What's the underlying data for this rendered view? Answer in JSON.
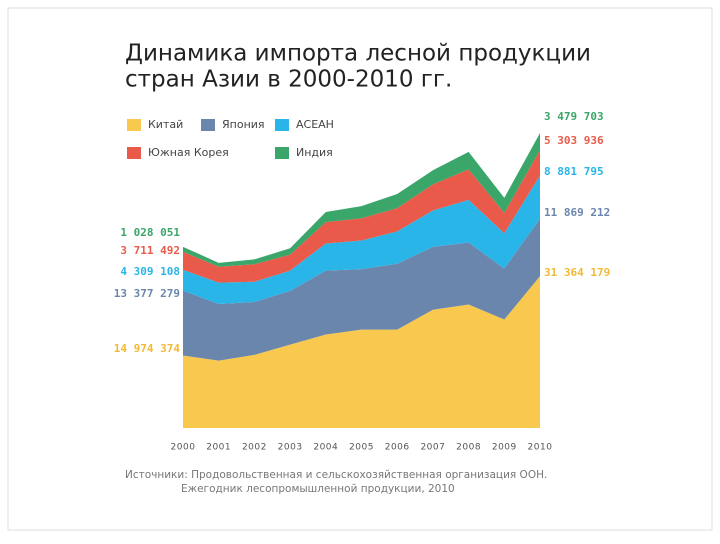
{
  "chart_data": {
    "type": "stacked-area",
    "title": [
      "Динамика импорта лесной продукции",
      "стран Азии в 2000-2010 гг."
    ],
    "categories": [
      "2000",
      "2001",
      "2002",
      "2003",
      "2004",
      "2005",
      "2006",
      "2007",
      "2008",
      "2009",
      "2010"
    ],
    "series": [
      {
        "name": "Китай",
        "color": "#f9c84e",
        "values": [
          14974374,
          13900000,
          15100000,
          17200000,
          19300000,
          20300000,
          20300000,
          24400000,
          25500000,
          22400000,
          31364179
        ],
        "value_labels": [
          "14 974 374",
          null,
          null,
          null,
          null,
          null,
          null,
          null,
          null,
          null,
          "31 364 179"
        ]
      },
      {
        "name": "Япония",
        "color": "#6b86ad",
        "values": [
          13377279,
          11700000,
          10900000,
          11100000,
          13200000,
          12500000,
          13600000,
          13000000,
          12800000,
          10500000,
          11869212
        ],
        "value_labels": [
          "13 377 279",
          null,
          null,
          null,
          null,
          null,
          null,
          null,
          null,
          null,
          "11 869 212"
        ]
      },
      {
        "name": "АСЕАН",
        "color": "#29b5e8",
        "values": [
          4309108,
          4400000,
          4200000,
          4200000,
          5600000,
          5900000,
          6700000,
          7500000,
          8800000,
          7300000,
          8881795
        ],
        "value_labels": [
          "4 309 108",
          null,
          null,
          null,
          null,
          null,
          null,
          null,
          null,
          null,
          "8 881 795"
        ]
      },
      {
        "name": "Южная Корея",
        "color": "#ea5a4a",
        "values": [
          3711492,
          3300000,
          3600000,
          3300000,
          4400000,
          4600000,
          4800000,
          5400000,
          6300000,
          4200000,
          5303936
        ],
        "value_labels": [
          "3 711 492",
          null,
          null,
          null,
          null,
          null,
          null,
          null,
          null,
          null,
          "5 303 936"
        ]
      },
      {
        "name": "Индия",
        "color": "#3aa66a",
        "values": [
          1028051,
          800000,
          1000000,
          1300000,
          2100000,
          2500000,
          2900000,
          2900000,
          3600000,
          3100000,
          3479703
        ],
        "value_labels": [
          "1 028 051",
          null,
          null,
          null,
          null,
          null,
          null,
          null,
          null,
          null,
          "3 479 703"
        ]
      }
    ],
    "source": [
      "Источники: Продовольственная и сельскохозяйственная организация ООН.",
      "Ежегодник лесопромышленной продукции, 2010"
    ]
  }
}
